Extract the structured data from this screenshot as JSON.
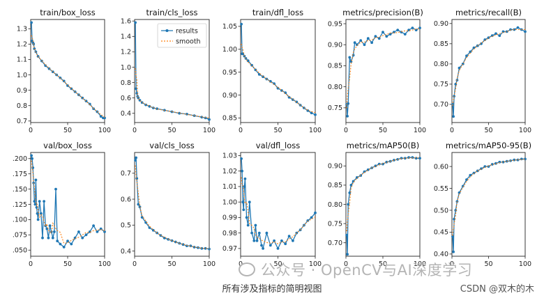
{
  "colors": {
    "results": "#1f77b4",
    "smooth": "#ff7f0e"
  },
  "chart_data": [
    {
      "type": "line",
      "title": "train/box_loss",
      "xlim": [
        0,
        100
      ],
      "ylim": [
        0.69,
        1.36
      ],
      "xticks": [
        0,
        50,
        100
      ],
      "yticks": [
        0.7,
        0.8,
        0.9,
        1.0,
        1.1,
        1.2,
        1.3
      ],
      "ytick_labels": [
        "0.7",
        "0.8",
        "0.9",
        "1.0",
        "1.1",
        "1.2",
        "1.3"
      ],
      "series": [
        {
          "name": "results",
          "x": [
            1,
            2,
            3,
            4,
            5,
            7,
            10,
            15,
            20,
            25,
            30,
            35,
            40,
            45,
            50,
            55,
            60,
            65,
            70,
            75,
            80,
            85,
            90,
            95,
            98,
            100
          ],
          "y": [
            1.34,
            1.22,
            1.21,
            1.2,
            1.17,
            1.15,
            1.12,
            1.09,
            1.06,
            1.04,
            1.02,
            1.0,
            0.98,
            0.96,
            0.93,
            0.91,
            0.89,
            0.87,
            0.85,
            0.83,
            0.81,
            0.78,
            0.76,
            0.73,
            0.72,
            0.72
          ]
        }
      ]
    },
    {
      "type": "line",
      "title": "train/cls_loss",
      "xlim": [
        0,
        100
      ],
      "ylim": [
        0.28,
        1.62
      ],
      "xticks": [
        0,
        50,
        100
      ],
      "yticks": [
        0.4,
        0.6,
        0.8,
        1.0,
        1.2,
        1.4,
        1.6
      ],
      "ytick_labels": [
        "0.4",
        "0.6",
        "0.8",
        "1.0",
        "1.2",
        "1.4",
        "1.6"
      ],
      "legend": {
        "entries": [
          "results",
          "smooth"
        ],
        "position": "upper right"
      },
      "series": [
        {
          "name": "results",
          "x": [
            1,
            2,
            3,
            4,
            5,
            7,
            10,
            15,
            20,
            25,
            30,
            40,
            50,
            60,
            70,
            80,
            90,
            95,
            100
          ],
          "y": [
            1.58,
            0.72,
            0.66,
            0.62,
            0.6,
            0.57,
            0.54,
            0.51,
            0.49,
            0.47,
            0.46,
            0.44,
            0.42,
            0.4,
            0.39,
            0.37,
            0.35,
            0.34,
            0.32
          ]
        }
      ]
    },
    {
      "type": "line",
      "title": "train/dfl_loss",
      "xlim": [
        0,
        100
      ],
      "ylim": [
        0.84,
        1.065
      ],
      "xticks": [
        0,
        50,
        100
      ],
      "yticks": [
        0.85,
        0.9,
        0.95,
        1.0,
        1.05
      ],
      "ytick_labels": [
        "0.85",
        "0.90",
        "0.95",
        "1.00",
        "1.05"
      ],
      "series": [
        {
          "name": "results",
          "x": [
            1,
            2,
            3,
            5,
            7,
            10,
            15,
            20,
            25,
            30,
            35,
            40,
            45,
            50,
            55,
            60,
            65,
            70,
            75,
            80,
            85,
            90,
            95,
            100
          ],
          "y": [
            1.055,
            0.99,
            0.99,
            0.985,
            0.98,
            0.975,
            0.965,
            0.955,
            0.945,
            0.94,
            0.935,
            0.93,
            0.925,
            0.915,
            0.91,
            0.905,
            0.895,
            0.89,
            0.885,
            0.878,
            0.872,
            0.866,
            0.861,
            0.857
          ]
        }
      ]
    },
    {
      "type": "line",
      "title": "metrics/precision(B)",
      "xlim": [
        0,
        100
      ],
      "ylim": [
        0.715,
        0.96
      ],
      "xticks": [
        0,
        50,
        100
      ],
      "yticks": [
        0.75,
        0.8,
        0.85,
        0.9,
        0.95
      ],
      "ytick_labels": [
        "0.75",
        "0.80",
        "0.85",
        "0.90",
        "0.95"
      ],
      "series": [
        {
          "name": "results",
          "x": [
            1,
            2,
            3,
            5,
            7,
            10,
            12,
            15,
            20,
            25,
            30,
            35,
            40,
            45,
            50,
            55,
            60,
            65,
            70,
            75,
            80,
            85,
            90,
            95,
            100
          ],
          "y": [
            0.758,
            0.73,
            0.76,
            0.87,
            0.86,
            0.875,
            0.905,
            0.9,
            0.91,
            0.9,
            0.915,
            0.905,
            0.92,
            0.915,
            0.93,
            0.92,
            0.925,
            0.93,
            0.935,
            0.93,
            0.925,
            0.935,
            0.94,
            0.935,
            0.94
          ]
        }
      ]
    },
    {
      "type": "line",
      "title": "metrics/recall(B)",
      "xlim": [
        0,
        100
      ],
      "ylim": [
        0.655,
        0.91
      ],
      "xticks": [
        0,
        50,
        100
      ],
      "yticks": [
        0.7,
        0.75,
        0.8,
        0.85,
        0.9
      ],
      "ytick_labels": [
        "0.70",
        "0.75",
        "0.80",
        "0.85",
        "0.90"
      ],
      "series": [
        {
          "name": "results",
          "x": [
            1,
            2,
            3,
            5,
            7,
            10,
            15,
            20,
            25,
            30,
            35,
            40,
            45,
            50,
            55,
            60,
            65,
            70,
            75,
            80,
            85,
            90,
            95,
            100
          ],
          "y": [
            0.7,
            0.67,
            0.72,
            0.75,
            0.76,
            0.79,
            0.8,
            0.82,
            0.83,
            0.84,
            0.845,
            0.85,
            0.86,
            0.865,
            0.87,
            0.875,
            0.87,
            0.88,
            0.88,
            0.885,
            0.885,
            0.89,
            0.885,
            0.88
          ]
        }
      ]
    },
    {
      "type": "line",
      "title": "val/box_loss",
      "xlim": [
        0,
        100
      ],
      "ylim": [
        0.04,
        0.21
      ],
      "xticks": [
        0,
        50,
        100
      ],
      "yticks": [
        0.05,
        0.075,
        0.1,
        0.125,
        0.15,
        0.175,
        0.2
      ],
      "ytick_labels": [
        ".050",
        ".075",
        ".100",
        ".125",
        ".150",
        ".175",
        ".200"
      ],
      "series": [
        {
          "name": "results",
          "x": [
            1,
            2,
            3,
            4,
            5,
            6,
            7,
            8,
            9,
            10,
            12,
            14,
            16,
            18,
            20,
            22,
            24,
            26,
            28,
            30,
            32,
            34,
            36,
            40,
            45,
            50,
            55,
            60,
            65,
            70,
            75,
            80,
            85,
            90,
            95,
            100
          ],
          "y": [
            0.205,
            0.2,
            0.185,
            0.16,
            0.13,
            0.125,
            0.165,
            0.12,
            0.11,
            0.1,
            0.13,
            0.11,
            0.07,
            0.13,
            0.09,
            0.085,
            0.07,
            0.09,
            0.08,
            0.07,
            0.08,
            0.15,
            0.065,
            0.06,
            0.055,
            0.065,
            0.06,
            0.07,
            0.08,
            0.07,
            0.075,
            0.08,
            0.09,
            0.08,
            0.085,
            0.08
          ]
        }
      ]
    },
    {
      "type": "line",
      "title": "val/cls_loss",
      "xlim": [
        0,
        100
      ],
      "ylim": [
        0.38,
        0.78
      ],
      "xticks": [
        0,
        50,
        100
      ],
      "yticks": [
        0.4,
        0.5,
        0.6,
        0.7
      ],
      "ytick_labels": [
        "0.4",
        "0.5",
        "0.6",
        "0.7"
      ],
      "series": [
        {
          "name": "results",
          "x": [
            1,
            2,
            3,
            5,
            7,
            10,
            15,
            20,
            25,
            30,
            35,
            40,
            45,
            50,
            55,
            60,
            65,
            70,
            75,
            80,
            85,
            90,
            95,
            100
          ],
          "y": [
            0.75,
            0.76,
            0.68,
            0.58,
            0.57,
            0.53,
            0.51,
            0.49,
            0.48,
            0.47,
            0.46,
            0.45,
            0.445,
            0.44,
            0.435,
            0.43,
            0.425,
            0.42,
            0.42,
            0.415,
            0.413,
            0.41,
            0.41,
            0.408
          ]
        }
      ]
    },
    {
      "type": "line",
      "title": "val/dfl_loss",
      "xlim": [
        0,
        100
      ],
      "ylim": [
        0.965,
        1.032
      ],
      "xticks": [
        0,
        50,
        100
      ],
      "yticks": [
        0.97,
        0.98,
        0.99,
        1.0,
        1.01,
        1.02,
        1.03
      ],
      "ytick_labels": [
        "0.97",
        "0.98",
        "0.99",
        "1.00",
        "1.01",
        "1.02",
        "1.03"
      ],
      "series": [
        {
          "name": "results",
          "x": [
            1,
            2,
            3,
            4,
            5,
            6,
            8,
            10,
            12,
            15,
            18,
            20,
            22,
            25,
            28,
            30,
            35,
            40,
            45,
            50,
            55,
            60,
            65,
            70,
            75,
            80,
            85,
            90,
            95,
            100
          ],
          "y": [
            1.028,
            1.02,
            1.0,
            0.995,
            1.01,
            1.015,
            0.99,
            0.985,
            1.0,
            0.98,
            0.975,
            0.985,
            0.975,
            0.98,
            0.972,
            0.97,
            0.98,
            0.972,
            0.975,
            0.97,
            0.975,
            0.973,
            0.978,
            0.975,
            0.98,
            0.982,
            0.985,
            0.988,
            0.99,
            0.993
          ]
        }
      ]
    },
    {
      "type": "line",
      "title": "metrics/mAP50(B)",
      "xlim": [
        0,
        100
      ],
      "ylim": [
        0.665,
        0.935
      ],
      "xticks": [
        0,
        50,
        100
      ],
      "yticks": [
        0.7,
        0.75,
        0.8,
        0.85,
        0.9
      ],
      "ytick_labels": [
        "0.70",
        "0.75",
        "0.80",
        "0.85",
        "0.90"
      ],
      "series": [
        {
          "name": "results",
          "x": [
            1,
            2,
            3,
            5,
            7,
            10,
            15,
            20,
            25,
            30,
            35,
            40,
            45,
            50,
            55,
            60,
            65,
            70,
            75,
            80,
            85,
            90,
            95,
            100
          ],
          "y": [
            0.72,
            0.67,
            0.8,
            0.83,
            0.85,
            0.86,
            0.87,
            0.875,
            0.885,
            0.89,
            0.895,
            0.9,
            0.905,
            0.905,
            0.91,
            0.912,
            0.915,
            0.917,
            0.92,
            0.92,
            0.922,
            0.922,
            0.92,
            0.92
          ]
        }
      ]
    },
    {
      "type": "line",
      "title": "metrics/mAP50-95(B)",
      "xlim": [
        0,
        100
      ],
      "ylim": [
        0.395,
        0.632
      ],
      "xticks": [
        0,
        50,
        100
      ],
      "yticks": [
        0.4,
        0.45,
        0.5,
        0.55,
        0.6
      ],
      "ytick_labels": [
        "0.40",
        "0.45",
        "0.50",
        "0.55",
        "0.60"
      ],
      "series": [
        {
          "name": "results",
          "x": [
            1,
            2,
            3,
            5,
            7,
            10,
            15,
            20,
            25,
            30,
            35,
            40,
            45,
            50,
            55,
            60,
            65,
            70,
            75,
            80,
            85,
            90,
            95,
            100
          ],
          "y": [
            0.44,
            0.405,
            0.48,
            0.5,
            0.52,
            0.54,
            0.555,
            0.57,
            0.58,
            0.585,
            0.59,
            0.595,
            0.6,
            0.6,
            0.605,
            0.607,
            0.61,
            0.61,
            0.612,
            0.613,
            0.615,
            0.615,
            0.617,
            0.617
          ]
        }
      ]
    }
  ],
  "caption": "所有涉及指标的简明视图",
  "watermark": "公众号 · OpenCV与AI深度学习",
  "credit": "CSDN @双木的木"
}
